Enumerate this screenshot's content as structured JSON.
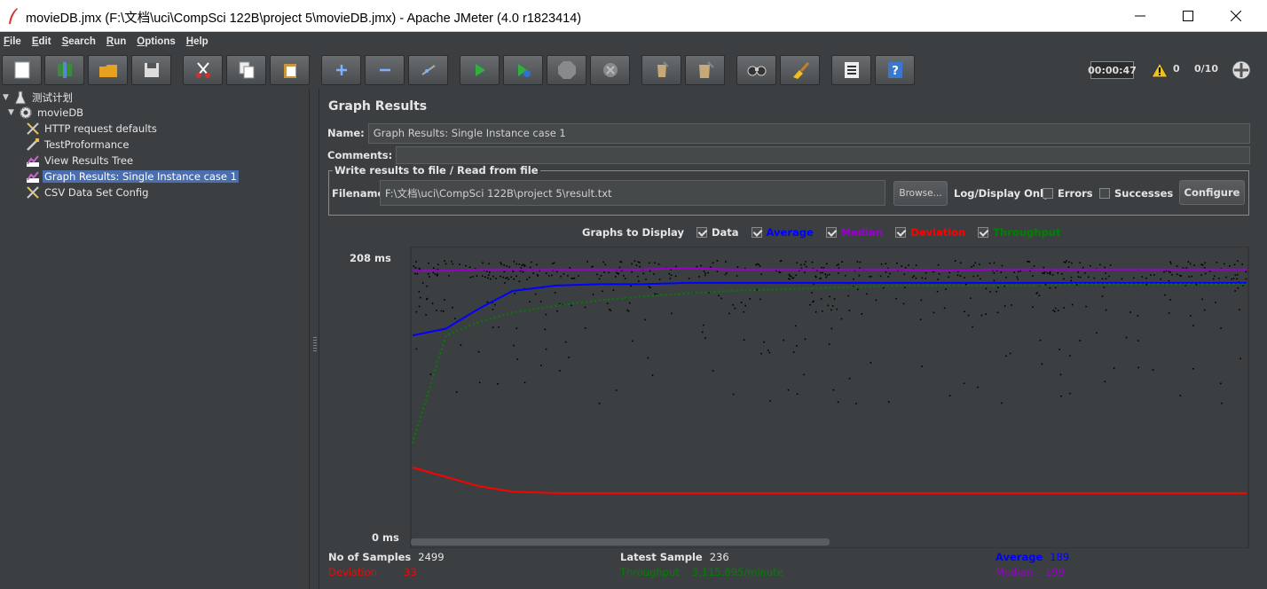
{
  "window": {
    "title": "movieDB.jmx (F:\\文档\\uci\\CompSci 122B\\project 5\\movieDB.jmx) - Apache JMeter (4.0 r1823414)"
  },
  "menu": [
    "File",
    "Edit",
    "Search",
    "Run",
    "Options",
    "Help"
  ],
  "toolbar": {
    "buttons": [
      "new-icon",
      "templates-icon",
      "open-icon",
      "save-icon",
      "cut-icon",
      "copy-icon",
      "paste-icon",
      "expand-icon",
      "collapse-icon",
      "toggle-icon",
      "start-icon",
      "start-no-pauses-icon",
      "stop-icon",
      "shutdown-icon",
      "clear-icon",
      "clear-all-icon",
      "search-icon",
      "reset-search-icon",
      "function-helper-icon",
      "help-icon"
    ],
    "elapsed_time": "00:00:47",
    "warning_count": "0",
    "active_threads": "0/10"
  },
  "tree": {
    "items": [
      {
        "label": "测试计划",
        "level": 0,
        "icon": "test-plan-icon",
        "expanded": true
      },
      {
        "label": "movieDB",
        "level": 1,
        "icon": "thread-group-icon",
        "expanded": true
      },
      {
        "label": "HTTP request defaults",
        "level": 2,
        "icon": "config-element-icon"
      },
      {
        "label": "TestProformance",
        "level": 2,
        "icon": "sampler-icon"
      },
      {
        "label": "View Results Tree",
        "level": 2,
        "icon": "listener-icon"
      },
      {
        "label": "Graph Results: Single Instance case 1",
        "level": 2,
        "icon": "listener-icon",
        "selected": true
      },
      {
        "label": "CSV Data Set Config",
        "level": 2,
        "icon": "config-element-icon"
      }
    ]
  },
  "panel": {
    "title": "Graph Results",
    "name_label": "Name:",
    "name_value": "Graph Results: Single Instance case 1",
    "comments_label": "Comments:",
    "comments_value": "",
    "file_group_title": "Write results to file / Read from file",
    "filename_label": "Filename",
    "filename_value": "F:\\文档\\uci\\CompSci 122B\\project 5\\result.txt",
    "browse_label": "Browse...",
    "log_display_label": "Log/Display Only:",
    "errors_label": "Errors",
    "successes_label": "Successes",
    "configure_label": "Configure",
    "graphs_to_display_label": "Graphs to Display",
    "graph_options": [
      {
        "label": "Data",
        "checked": true,
        "color": "#e6e6e6"
      },
      {
        "label": "Average",
        "checked": true,
        "color": "#0000ff"
      },
      {
        "label": "Median",
        "checked": true,
        "color": "#9900cc"
      },
      {
        "label": "Deviation",
        "checked": true,
        "color": "#ff0000"
      },
      {
        "label": "Throughput",
        "checked": true,
        "color": "#008000"
      }
    ]
  },
  "chart_data": {
    "type": "line",
    "y_max_label": "208",
    "y_min_label": "0",
    "y_unit": "ms",
    "ylim": [
      0,
      208
    ],
    "samples": 2499,
    "series": [
      {
        "name": "Median",
        "color": "#9900cc",
        "values": [
          198,
          198,
          199,
          199,
          199,
          199,
          199,
          200,
          199,
          199,
          199,
          199,
          199,
          198,
          199,
          199,
          199,
          199,
          199,
          199,
          199
        ]
      },
      {
        "name": "Average",
        "color": "#0000ff",
        "values": [
          150,
          155,
          170,
          183,
          187,
          188,
          188,
          189,
          189,
          189,
          189,
          189,
          189,
          189,
          189,
          189,
          189,
          189,
          189,
          189,
          189
        ]
      },
      {
        "name": "Throughput",
        "color": "#008000",
        "values": [
          70,
          150,
          160,
          167,
          172,
          176,
          179,
          181,
          183,
          184,
          185,
          186,
          187,
          187,
          187,
          187,
          188,
          188,
          188,
          188,
          188
        ]
      },
      {
        "name": "Deviation",
        "color": "#ff0000",
        "values": [
          52,
          45,
          38,
          34,
          33,
          33,
          33,
          33,
          33,
          33,
          33,
          33,
          33,
          33,
          33,
          33,
          33,
          33,
          33,
          33,
          33
        ]
      }
    ]
  },
  "stats": {
    "no_of_samples_label": "No of Samples",
    "no_of_samples": "2499",
    "latest_sample_label": "Latest Sample",
    "latest_sample": "236",
    "average_label": "Average",
    "average": "189",
    "deviation_label": "Deviation",
    "deviation": "33",
    "throughput_label": "Throughput",
    "throughput": "3,115.895/minute",
    "median_label": "Median",
    "median": "199"
  },
  "colors": {
    "background": "#3c3f41",
    "selection": "#4b6eaf",
    "average": "#0000ff",
    "median": "#9900cc",
    "deviation": "#ff0000",
    "throughput": "#008000"
  }
}
